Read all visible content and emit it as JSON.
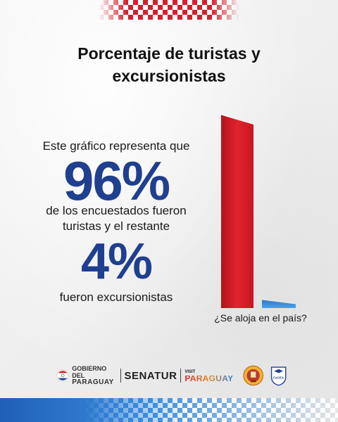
{
  "header": {
    "title_line1": "Porcentaje de turistas y",
    "title_line2": "excursionistas"
  },
  "body": {
    "lead": "Este gráfico representa que",
    "big_value_1": "96%",
    "mid_line1": "de los encuestados fueron",
    "mid_line2": "turistas y el restante",
    "big_value_2": "4%",
    "tail": "fueron excursionistas"
  },
  "chart_data": {
    "type": "bar",
    "categories": [
      "¿Se aloja en el país?"
    ],
    "series": [
      {
        "values": [
          96
        ],
        "color": "#d61f2c"
      },
      {
        "values": [
          4
        ],
        "color": "#2f7fd1"
      }
    ],
    "xlabel": "¿Se aloja en el país?",
    "ylabel": "",
    "ylim": [
      0,
      100
    ]
  },
  "footer": {
    "gobierno_line1": "GOBIERNO DEL",
    "gobierno_line2": "PARAGUAY",
    "senatur": "SENATUR",
    "visit_small": "VISIT",
    "visit_big": "PARAGUAY",
    "seal1_text": "UNI",
    "seal2_text": "FaCEA"
  },
  "colors": {
    "primary_blue": "#1f3f8f",
    "red": "#d61f2c",
    "light_blue": "#2f7fd1"
  }
}
